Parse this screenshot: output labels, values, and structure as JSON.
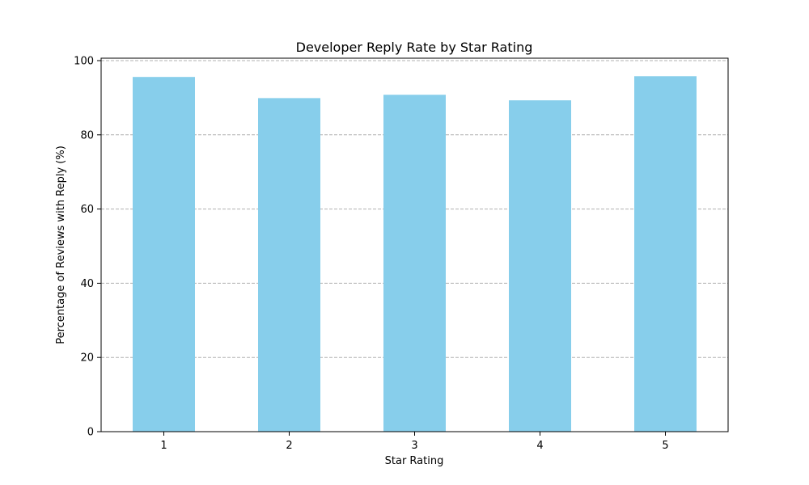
{
  "chart_data": {
    "type": "bar",
    "title": "Developer Reply Rate by Star Rating",
    "xlabel": "Star Rating",
    "ylabel": "Percentage of Reviews with Reply (%)",
    "categories": [
      "1",
      "2",
      "3",
      "4",
      "5"
    ],
    "values": [
      95.6,
      89.9,
      90.8,
      89.3,
      95.8
    ],
    "ylim": [
      0,
      100
    ],
    "yticks": [
      0,
      20,
      40,
      60,
      80,
      100
    ],
    "grid": "y-dashed",
    "bar_color": "#87ceeb",
    "grid_color": "#b0b0b0"
  }
}
